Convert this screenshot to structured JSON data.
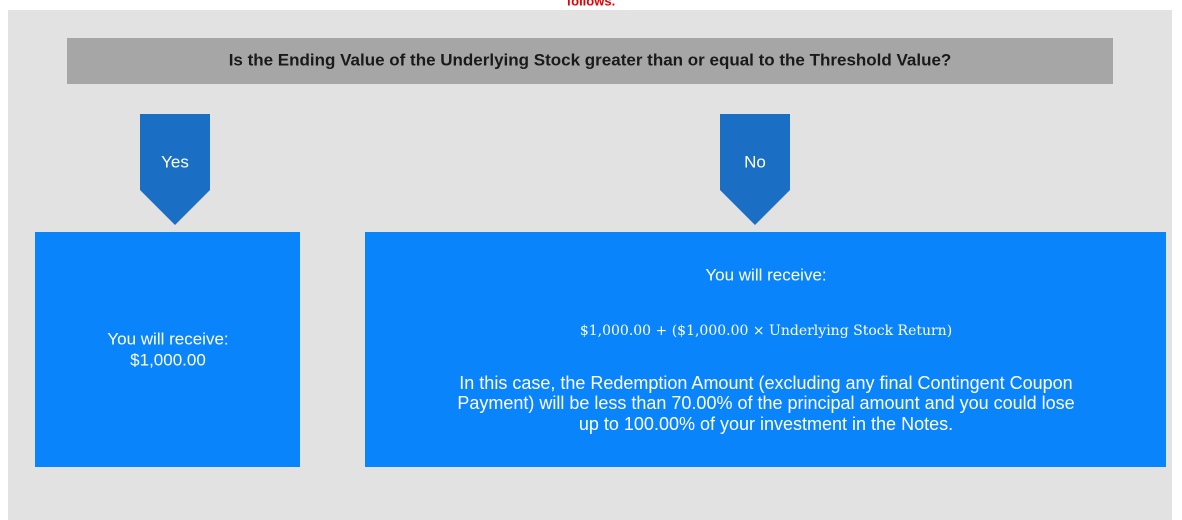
{
  "header": {
    "note": "follows."
  },
  "question": "Is the Ending Value of the Underlying Stock greater than or equal to the Threshold Value?",
  "branches": [
    {
      "label": "Yes",
      "outcome": {
        "lines": [
          "You will receive:",
          "$1,000.00"
        ]
      }
    },
    {
      "label": "No",
      "outcome": {
        "title": "You will receive:",
        "formula": "$1,000.00 + ($1,000.00 × Underlying Stock Return)",
        "lines": [
          "In this case, the Redemption Amount (excluding any final Contingent Coupon",
          "Payment) will be less than 70.00% of the principal amount and you could lose",
          "up to 100.00% of your investment in the Notes."
        ]
      }
    }
  ]
}
